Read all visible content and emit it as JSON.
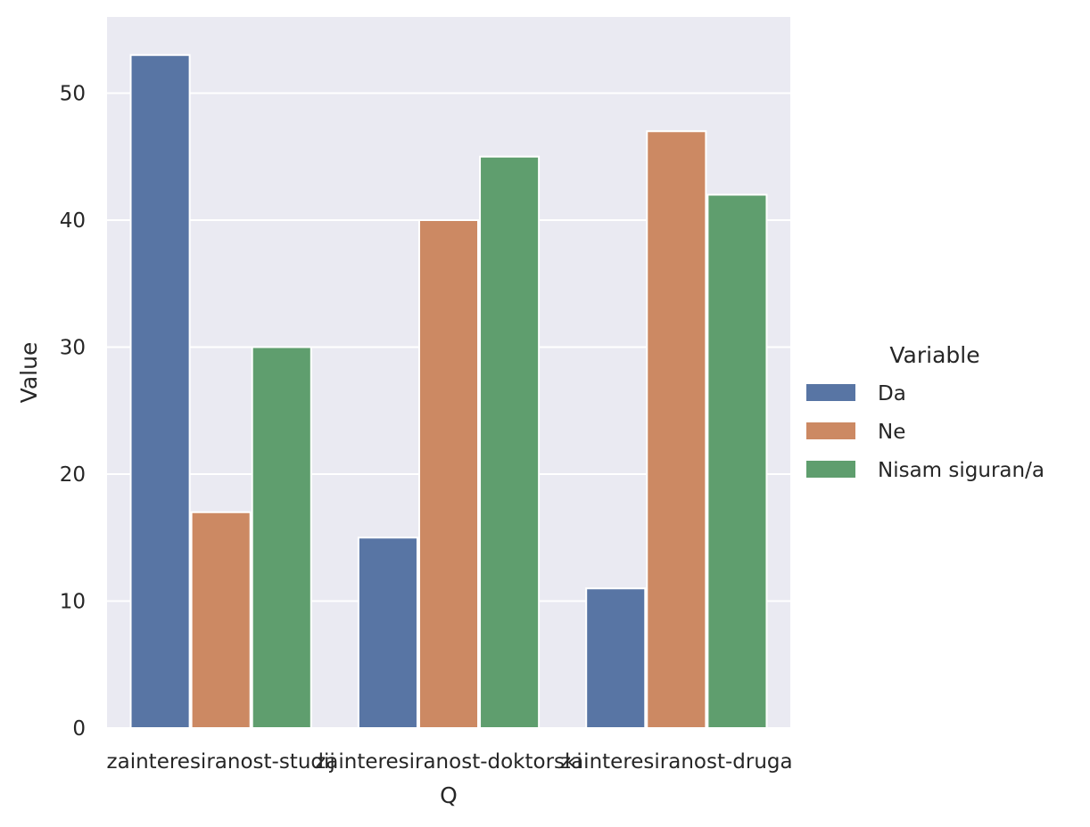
{
  "chart_data": {
    "type": "bar",
    "title": "",
    "xlabel": "Q",
    "ylabel": "Value",
    "ylim": [
      0,
      56
    ],
    "yticks": [
      0,
      10,
      20,
      30,
      40,
      50
    ],
    "categories": [
      "zainteresiranost-studij",
      "zainteresiranost-doktorski",
      "zainteresiranost-druga"
    ],
    "series": [
      {
        "name": "Da",
        "values": [
          53,
          15,
          11
        ],
        "color": "#5875a4"
      },
      {
        "name": "Ne",
        "values": [
          17,
          40,
          47
        ],
        "color": "#cc8963"
      },
      {
        "name": "Nisam siguran/a",
        "values": [
          30,
          45,
          42
        ],
        "color": "#5f9e6e"
      }
    ],
    "legend": {
      "title": "Variable",
      "placement": "center-right outside"
    },
    "grid": true,
    "background_color": "#eaeaf2",
    "grid_color": "#ffffff"
  }
}
